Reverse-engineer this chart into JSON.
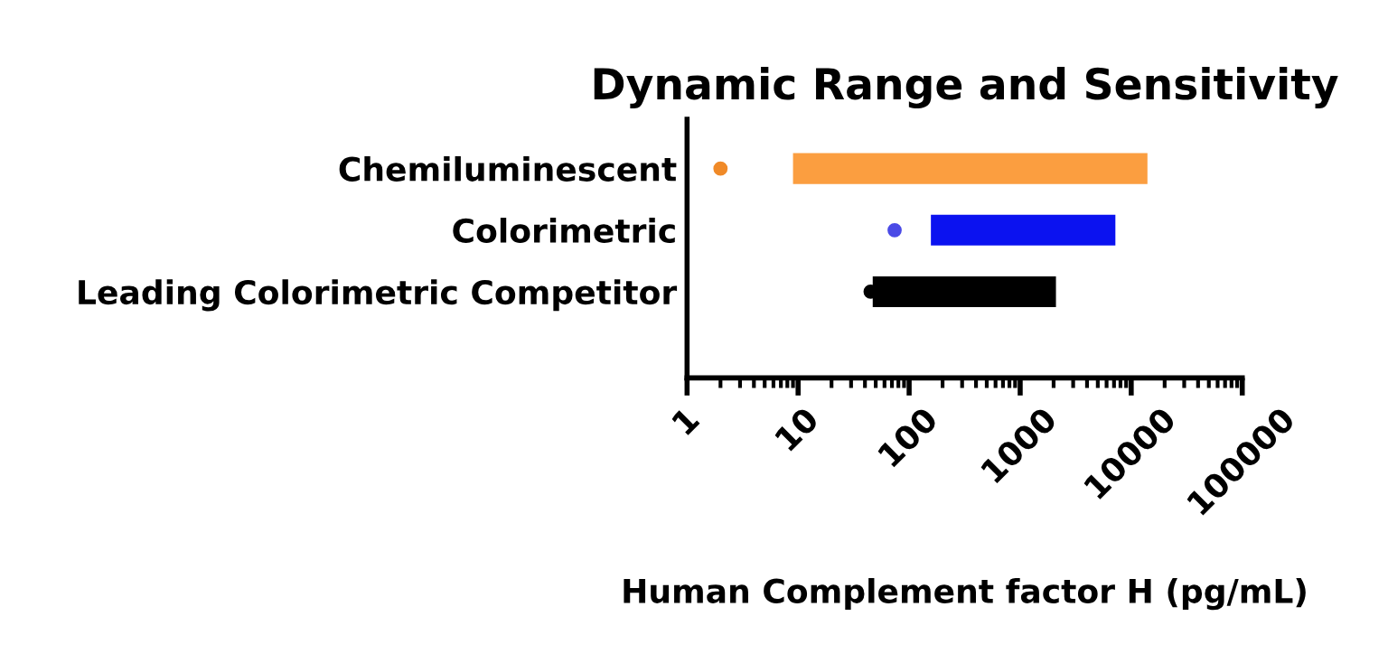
{
  "chart_data": {
    "type": "bar",
    "orientation": "horizontal",
    "title": "Dynamic Range and Sensitivity",
    "xlabel": "Human Complement factor H (pg/mL)",
    "categories": [
      "Chemiluminescent",
      "Colorimetric",
      "Leading Colorimetric Competitor"
    ],
    "series": [
      {
        "base": [
          9,
          157,
          47
        ],
        "values": [
          13991,
          7043,
          2053
        ],
        "colors": [
          "#fb9e40",
          "#0b12f0",
          "#000000"
        ]
      },
      {
        "type": "scatter",
        "values": [
          2,
          74,
          45
        ],
        "colors": [
          "#f08a28",
          "#4a4ae6",
          "#000000"
        ],
        "marker": "circle"
      }
    ],
    "log": "x",
    "xlim": [
      1,
      100000
    ],
    "xticks": [
      1,
      10,
      100,
      1000,
      10000,
      100000
    ],
    "grid": false,
    "legend": false
  }
}
